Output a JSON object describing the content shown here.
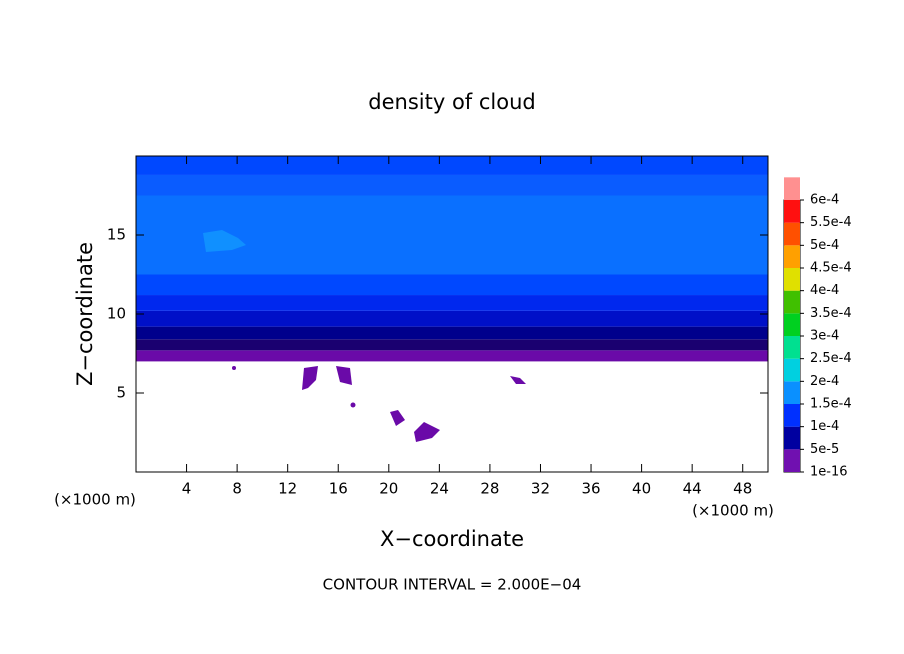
{
  "chart_data": {
    "type": "contour",
    "title": "density of cloud",
    "x_label": "X−coordinate",
    "y_label": "Z−coordinate",
    "x_unit_label": "(×1000 m)",
    "y_unit_label": "(×1000 m)",
    "footnote": "CONTOUR INTERVAL = 2.000E−04",
    "xlim": [
      0,
      50
    ],
    "ylim": [
      0,
      20
    ],
    "xticks": [
      4,
      8,
      12,
      16,
      20,
      24,
      28,
      32,
      36,
      40,
      44,
      48
    ],
    "yticks": [
      5,
      10,
      15
    ],
    "bands": [
      {
        "z": [
          7,
          7.7
        ],
        "color": "#6a0aa8"
      },
      {
        "z": [
          7.7,
          8.4
        ],
        "color": "#1a0070"
      },
      {
        "z": [
          8.4,
          9.2
        ],
        "color": "#00008c"
      },
      {
        "z": [
          9.2,
          10.2
        ],
        "color": "#0010c8"
      },
      {
        "z": [
          10.2,
          11.2
        ],
        "color": "#0028ee"
      },
      {
        "z": [
          11.2,
          12.5
        ],
        "color": "#0048ff"
      },
      {
        "z": [
          12.5,
          17.5
        ],
        "color": "#0a70ff"
      },
      {
        "z": [
          17.5,
          18.8
        ],
        "color": "#0a5cff"
      },
      {
        "z": [
          18.8,
          20
        ],
        "color": "#0048ff"
      }
    ],
    "colorbar": {
      "levels": [
        {
          "value": 1e-16,
          "label": "1e-16"
        },
        {
          "value": 5e-05,
          "label": "5e-5"
        },
        {
          "value": 0.0001,
          "label": "1e-4"
        },
        {
          "value": 0.00015,
          "label": "1.5e-4"
        },
        {
          "value": 0.0002,
          "label": "2e-4"
        },
        {
          "value": 0.00025,
          "label": "2.5e-4"
        },
        {
          "value": 0.0003,
          "label": "3e-4"
        },
        {
          "value": 0.00035,
          "label": "3.5e-4"
        },
        {
          "value": 0.0004,
          "label": "4e-4"
        },
        {
          "value": 0.00045,
          "label": "4.5e-4"
        },
        {
          "value": 0.0005,
          "label": "5e-4"
        },
        {
          "value": 0.00055,
          "label": "5.5e-4"
        },
        {
          "value": 0.0006,
          "label": "6e-4"
        }
      ],
      "colors": [
        "#7010b0",
        "#0000a0",
        "#0030ff",
        "#0a90ff",
        "#00d0e0",
        "#00e090",
        "#00d020",
        "#40c000",
        "#e0e000",
        "#ffa000",
        "#ff5000",
        "#ff1010",
        "#ff9090"
      ]
    }
  }
}
